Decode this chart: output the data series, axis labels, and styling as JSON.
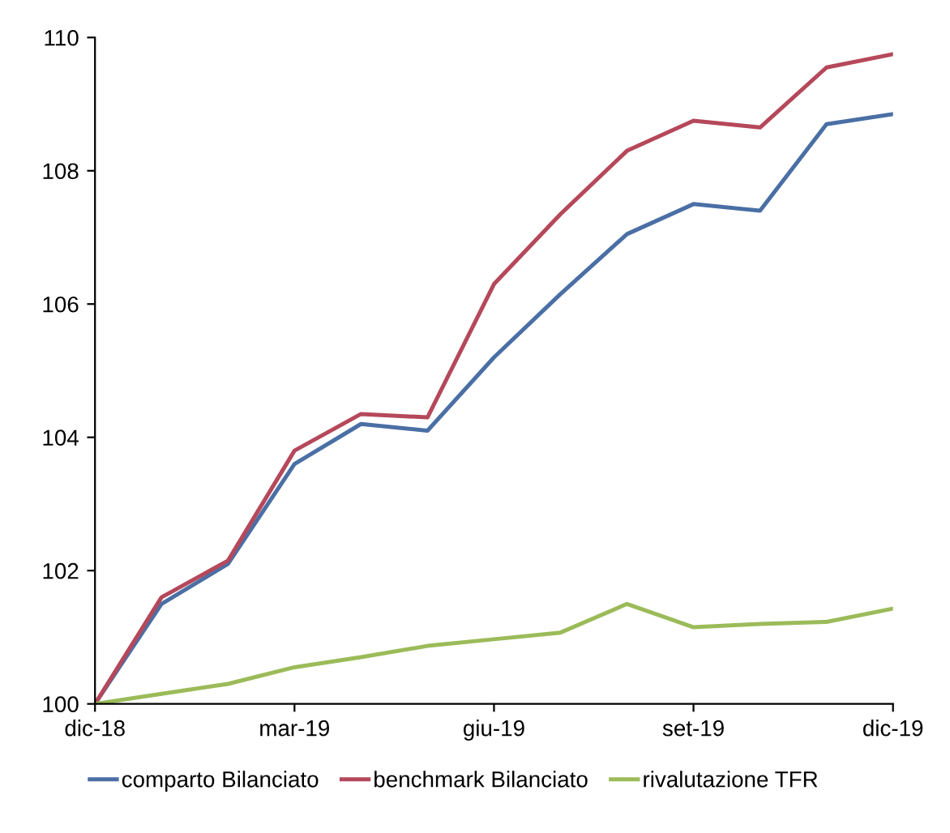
{
  "chart_data": {
    "type": "line",
    "categories": [
      "dic-18",
      null,
      null,
      "mar-19",
      null,
      null,
      "giu-19",
      null,
      null,
      "set-19",
      null,
      null,
      "dic-19"
    ],
    "series": [
      {
        "name": "comparto Bilanciato",
        "color": "#4a6fa5",
        "values": [
          100,
          101.5,
          102.1,
          103.6,
          104.2,
          104.1,
          105.2,
          106.15,
          107.05,
          107.5,
          107.4,
          108.7,
          108.85
        ]
      },
      {
        "name": "benchmark Bilanciato",
        "color": "#b5485a",
        "values": [
          100,
          101.6,
          102.15,
          103.8,
          104.35,
          104.3,
          106.3,
          107.35,
          108.3,
          108.75,
          108.65,
          109.55,
          109.75
        ]
      },
      {
        "name": "rivalutazione TFR",
        "color": "#9bbb59",
        "values": [
          100,
          100.15,
          100.3,
          100.55,
          100.7,
          100.87,
          100.97,
          101.07,
          101.5,
          101.15,
          101.2,
          101.23,
          101.43
        ]
      }
    ],
    "ylim": [
      100,
      110
    ],
    "yticks": [
      100,
      102,
      104,
      106,
      108,
      110
    ],
    "grid": false,
    "legend": "bottom",
    "marker": "none",
    "line_style": "solid"
  }
}
